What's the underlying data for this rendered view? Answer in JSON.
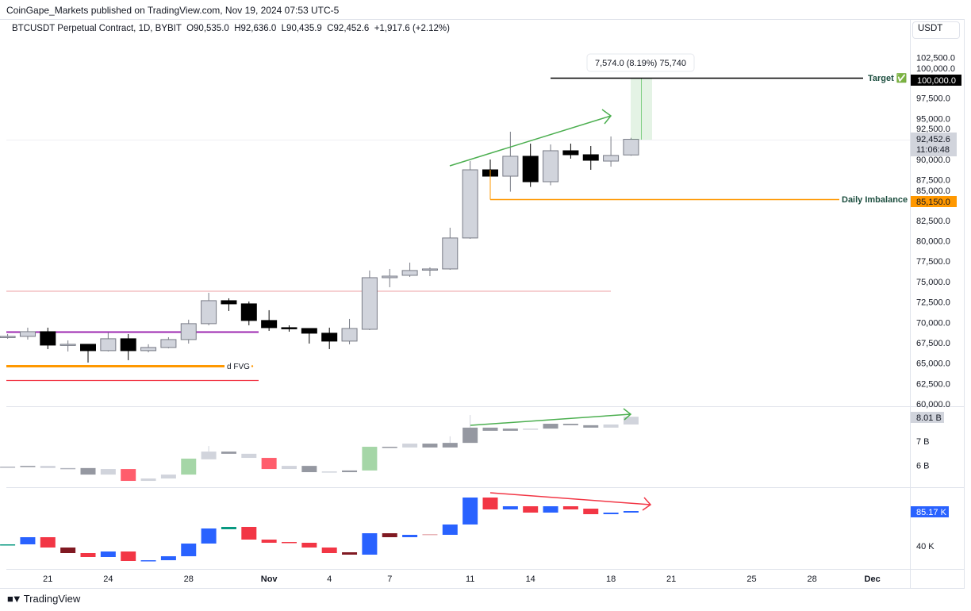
{
  "header": {
    "published": "CoinGape_Markets published on TradingView.com, Nov 19, 2024 07:53 UTC-5"
  },
  "legend": {
    "symbol": "BTCUSDT Perpetual Contract, 1D, BYBIT",
    "open": "O90,535.0",
    "high": "H92,636.0",
    "low": "L90,435.9",
    "close": "C92,452.6",
    "change": "+1,917.6 (+2.12%)"
  },
  "price_axis": {
    "currency": "USDT",
    "last_price": "92,452.6",
    "countdown": "11:06:48"
  },
  "annotations": {
    "measure": "7,574.0 (8.19%) 75,740",
    "target_label": "Target ✅",
    "target_value": "100,000.0",
    "imbalance_label": "Daily Imbalance",
    "imbalance_value": "85,150.0",
    "fvg_label": "d FVG",
    "colors": {
      "target": "#000000",
      "imbalance": "#ff9800",
      "fvg": "#ff9800",
      "purple": "#9c27b0",
      "red": "#f23645",
      "pink": "#f0b4b8",
      "arrow_green": "#4caf50",
      "arrow_red": "#f23645"
    }
  },
  "footer": {
    "brand": "TradingView"
  },
  "chart_data": [
    {
      "type": "candlestick",
      "pane": "price",
      "ylim": [
        60000,
        102500
      ],
      "yticks": [
        "102,500.0",
        "100,000.0",
        "97,500.0",
        "95,000.0",
        "92,500.0",
        "90,000.0",
        "87,500.0",
        "85,000.0",
        "82,500.0",
        "80,000.0",
        "77,500.0",
        "75,000.0",
        "72,500.0",
        "70,000.0",
        "67,500.0",
        "65,000.0",
        "62,500.0",
        "60,000.0"
      ],
      "xticks": [
        "21",
        "24",
        "28",
        "Nov",
        "4",
        "7",
        "11",
        "14",
        "18",
        "21",
        "25",
        "28",
        "Dec"
      ],
      "xtick_dates": [
        "Oct 21",
        "Oct 24",
        "Oct 28",
        "Nov 1",
        "Nov 4",
        "Nov 7",
        "Nov 11",
        "Nov 14",
        "Nov 18",
        "Nov 21",
        "Nov 25",
        "Nov 28",
        "Dec 1"
      ],
      "up_color": "#d1d4dc",
      "down_color": "#000000",
      "candles": [
        {
          "date": "Oct 19",
          "o": 68280,
          "h": 68570,
          "l": 67990,
          "c": 68280
        },
        {
          "date": "Oct 20",
          "o": 68280,
          "h": 69350,
          "l": 67890,
          "c": 68860
        },
        {
          "date": "Oct 21",
          "o": 68860,
          "h": 69350,
          "l": 66720,
          "c": 67210
        },
        {
          "date": "Oct 22",
          "o": 67310,
          "h": 67790,
          "l": 66430,
          "c": 67310
        },
        {
          "date": "Oct 23",
          "o": 67310,
          "h": 67310,
          "l": 65070,
          "c": 66530
        },
        {
          "date": "Oct 24",
          "o": 66530,
          "h": 68770,
          "l": 66430,
          "c": 67990
        },
        {
          "date": "Oct 25",
          "o": 67990,
          "h": 68570,
          "l": 65360,
          "c": 66530
        },
        {
          "date": "Oct 26",
          "o": 66530,
          "h": 67310,
          "l": 66330,
          "c": 66920
        },
        {
          "date": "Oct 27",
          "o": 66920,
          "h": 68180,
          "l": 66820,
          "c": 67890
        },
        {
          "date": "Oct 28",
          "o": 67890,
          "h": 70330,
          "l": 67400,
          "c": 69840
        },
        {
          "date": "Oct 29",
          "o": 69840,
          "h": 73630,
          "l": 69640,
          "c": 72660
        },
        {
          "date": "Oct 30",
          "o": 72660,
          "h": 72950,
          "l": 71390,
          "c": 72270
        },
        {
          "date": "Oct 31",
          "o": 72270,
          "h": 72560,
          "l": 69640,
          "c": 70230
        },
        {
          "date": "Nov 1",
          "o": 70230,
          "h": 71490,
          "l": 68960,
          "c": 69350
        },
        {
          "date": "Nov 2",
          "o": 69350,
          "h": 69640,
          "l": 68860,
          "c": 69250
        },
        {
          "date": "Nov 3",
          "o": 69250,
          "h": 69250,
          "l": 67400,
          "c": 68670
        },
        {
          "date": "Nov 4",
          "o": 68670,
          "h": 69350,
          "l": 66720,
          "c": 67700
        },
        {
          "date": "Nov 5",
          "o": 67700,
          "h": 70420,
          "l": 67310,
          "c": 69250
        },
        {
          "date": "Nov 6",
          "o": 69150,
          "h": 76360,
          "l": 69050,
          "c": 75480
        },
        {
          "date": "Nov 7",
          "o": 75480,
          "h": 76550,
          "l": 74310,
          "c": 75670
        },
        {
          "date": "Nov 8",
          "o": 75770,
          "h": 77330,
          "l": 75570,
          "c": 76360
        },
        {
          "date": "Nov 9",
          "o": 76450,
          "h": 76750,
          "l": 75670,
          "c": 76550
        },
        {
          "date": "Nov 10",
          "o": 76550,
          "h": 81610,
          "l": 76450,
          "c": 80350
        },
        {
          "date": "Nov 11",
          "o": 80350,
          "h": 89780,
          "l": 80250,
          "c": 88710
        },
        {
          "date": "Nov 12",
          "o": 88710,
          "h": 89970,
          "l": 85110,
          "c": 87930
        },
        {
          "date": "Nov 13",
          "o": 87930,
          "h": 93380,
          "l": 86030,
          "c": 90370
        },
        {
          "date": "Nov 14",
          "o": 90370,
          "h": 91920,
          "l": 86610,
          "c": 87250
        },
        {
          "date": "Nov 15",
          "o": 87250,
          "h": 91820,
          "l": 86810,
          "c": 91050
        },
        {
          "date": "Nov 16",
          "o": 91050,
          "h": 91920,
          "l": 90080,
          "c": 90560
        },
        {
          "date": "Nov 17",
          "o": 90560,
          "h": 91630,
          "l": 88710,
          "c": 89880
        },
        {
          "date": "Nov 18",
          "o": 89780,
          "h": 92800,
          "l": 89100,
          "c": 90470
        },
        {
          "date": "Nov 19",
          "o": 90535,
          "h": 92636,
          "l": 90435.9,
          "c": 92452.6
        }
      ]
    },
    {
      "type": "candlestick",
      "pane": "volume",
      "unit": "B",
      "yticks": [
        "7 B",
        "6 B"
      ],
      "last_value": "8.01 B",
      "candles": [
        {
          "date": "Oct 19",
          "o": 5.95,
          "c": 5.95,
          "color": "#b2b5be"
        },
        {
          "date": "Oct 20",
          "o": 5.95,
          "c": 5.98,
          "color": "#9598a1"
        },
        {
          "date": "Oct 21",
          "o": 5.98,
          "c": 5.89,
          "color": "#d1d4dc"
        },
        {
          "date": "Oct 22",
          "o": 5.89,
          "c": 5.89,
          "color": "#b2b5be"
        },
        {
          "date": "Oct 23",
          "o": 5.89,
          "c": 5.62,
          "color": "#9598a1"
        },
        {
          "date": "Oct 24",
          "o": 5.85,
          "c": 5.62,
          "color": "#d1d4dc"
        },
        {
          "date": "Oct 25",
          "o": 5.85,
          "c": 5.36,
          "color": "#ff5d6c"
        },
        {
          "date": "Oct 26",
          "o": 5.46,
          "c": 5.36,
          "color": "#d1d4dc"
        },
        {
          "date": "Oct 27",
          "o": 5.46,
          "c": 5.62,
          "color": "#d1d4dc"
        },
        {
          "date": "Oct 28",
          "o": 5.62,
          "c": 6.28,
          "color": "#a5d6a7"
        },
        {
          "date": "Oct 29",
          "o": 6.25,
          "c": 6.57,
          "h": 6.8,
          "color": "#d1d4dc"
        },
        {
          "date": "Oct 30",
          "o": 6.57,
          "c": 6.48,
          "color": "#9598a1"
        },
        {
          "date": "Oct 31",
          "o": 6.48,
          "c": 6.31,
          "color": "#d1d4dc"
        },
        {
          "date": "Nov 1",
          "o": 6.31,
          "c": 5.85,
          "color": "#ff5d6c"
        },
        {
          "date": "Nov 2",
          "o": 5.85,
          "c": 5.98,
          "color": "#d1d4dc"
        },
        {
          "date": "Nov 3",
          "o": 5.98,
          "c": 5.72,
          "color": "#9598a1"
        },
        {
          "date": "Nov 4",
          "o": 5.75,
          "c": 5.75,
          "color": "#d1d4dc"
        },
        {
          "date": "Nov 5",
          "o": 5.72,
          "c": 5.79,
          "color": "#9598a1"
        },
        {
          "date": "Nov 6",
          "o": 5.79,
          "c": 6.77,
          "color": "#a5d6a7"
        },
        {
          "date": "Nov 7",
          "o": 6.77,
          "c": 6.74,
          "color": "#9598a1"
        },
        {
          "date": "Nov 8",
          "o": 6.74,
          "c": 6.9,
          "color": "#d1d4dc"
        },
        {
          "date": "Nov 9",
          "o": 6.9,
          "c": 6.74,
          "color": "#9598a1"
        },
        {
          "date": "Nov 10",
          "o": 6.74,
          "c": 6.93,
          "h": 7.2,
          "color": "#9598a1"
        },
        {
          "date": "Nov 11",
          "o": 6.93,
          "c": 7.56,
          "h": 8.08,
          "color": "#9598a1"
        },
        {
          "date": "Nov 12",
          "o": 7.56,
          "c": 7.43,
          "color": "#9598a1"
        },
        {
          "date": "Nov 13",
          "o": 7.43,
          "c": 7.52,
          "color": "#9598a1"
        },
        {
          "date": "Nov 14",
          "o": 7.52,
          "c": 7.52,
          "color": "#d1d4dc"
        },
        {
          "date": "Nov 15",
          "o": 7.52,
          "c": 7.72,
          "color": "#9598a1"
        },
        {
          "date": "Nov 16",
          "o": 7.72,
          "c": 7.66,
          "color": "#9598a1"
        },
        {
          "date": "Nov 17",
          "o": 7.66,
          "c": 7.56,
          "color": "#9598a1"
        },
        {
          "date": "Nov 18",
          "o": 7.56,
          "c": 7.69,
          "color": "#d1d4dc"
        },
        {
          "date": "Nov 19",
          "o": 7.69,
          "c": 8.01,
          "color": "#d1d4dc"
        }
      ]
    },
    {
      "type": "candlestick",
      "pane": "indicator",
      "unit": "K",
      "yticks": [
        "40 K"
      ],
      "last_value": "85.17 K",
      "candles": [
        {
          "date": "Oct 19",
          "o": 40.5,
          "c": 40.5,
          "color": "#089981"
        },
        {
          "date": "Oct 20",
          "o": 40.5,
          "c": 42.75,
          "color": "#2962ff"
        },
        {
          "date": "Oct 21",
          "o": 42.75,
          "c": 39.5,
          "color": "#f23645"
        },
        {
          "date": "Oct 22",
          "o": 39.5,
          "c": 37.75,
          "color": "#801922"
        },
        {
          "date": "Oct 23",
          "o": 37.75,
          "c": 36.5,
          "color": "#f23645"
        },
        {
          "date": "Oct 24",
          "o": 36.5,
          "c": 38.25,
          "color": "#2962ff"
        },
        {
          "date": "Oct 25",
          "o": 38.25,
          "c": 35.25,
          "color": "#f23645"
        },
        {
          "date": "Oct 26",
          "o": 35.25,
          "c": 35.5,
          "color": "#2962ff"
        },
        {
          "date": "Oct 27",
          "o": 35.5,
          "c": 36.75,
          "color": "#2962ff"
        },
        {
          "date": "Oct 28",
          "o": 36.75,
          "c": 40.75,
          "color": "#2962ff"
        },
        {
          "date": "Oct 29",
          "o": 40.75,
          "c": 45.5,
          "color": "#2962ff"
        },
        {
          "date": "Oct 30",
          "o": 45.25,
          "c": 46,
          "color": "#089981"
        },
        {
          "date": "Oct 31",
          "o": 46,
          "c": 42,
          "color": "#f23645"
        },
        {
          "date": "Nov 1",
          "o": 42,
          "c": 41,
          "color": "#f23645"
        },
        {
          "date": "Nov 2",
          "o": 41.25,
          "c": 41,
          "color": "#f23645"
        },
        {
          "date": "Nov 3",
          "o": 41,
          "c": 39.5,
          "color": "#f23645"
        },
        {
          "date": "Nov 4",
          "o": 39.5,
          "c": 37.75,
          "color": "#f23645"
        },
        {
          "date": "Nov 5",
          "o": 38,
          "c": 37.25,
          "color": "#801922"
        },
        {
          "date": "Nov 6",
          "o": 37.25,
          "c": 44,
          "color": "#2962ff"
        },
        {
          "date": "Nov 7",
          "o": 44,
          "c": 42.75,
          "color": "#801922"
        },
        {
          "date": "Nov 8",
          "o": 42.75,
          "c": 43.5,
          "color": "#2962ff"
        },
        {
          "date": "Nov 9",
          "o": 43.5,
          "c": 43.75,
          "color": "#e8b4b8"
        },
        {
          "date": "Nov 10",
          "o": 43.5,
          "c": 46.75,
          "color": "#2962ff"
        },
        {
          "date": "Nov 11",
          "o": 46.75,
          "c": 55.25,
          "color": "#2962ff"
        },
        {
          "date": "Nov 12",
          "o": 55.25,
          "c": 51.5,
          "color": "#f23645"
        },
        {
          "date": "Nov 13",
          "o": 51.5,
          "c": 52.5,
          "color": "#2962ff"
        },
        {
          "date": "Nov 14",
          "o": 52.5,
          "c": 50.5,
          "color": "#f23645"
        },
        {
          "date": "Nov 15",
          "o": 50.5,
          "c": 52.5,
          "color": "#2962ff"
        },
        {
          "date": "Nov 16",
          "o": 52.5,
          "c": 51.5,
          "color": "#f23645"
        },
        {
          "date": "Nov 17",
          "o": 51.75,
          "c": 50,
          "color": "#f23645"
        },
        {
          "date": "Nov 18",
          "o": 50,
          "c": 50.5,
          "color": "#2962ff"
        },
        {
          "date": "Nov 19",
          "o": 50.5,
          "c": 51,
          "color": "#2962ff"
        }
      ]
    }
  ]
}
